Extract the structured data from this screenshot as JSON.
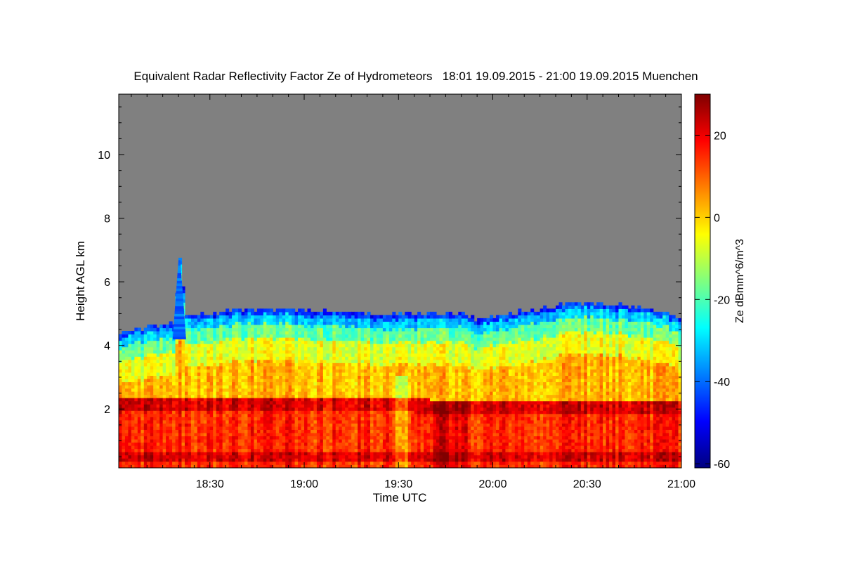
{
  "chart_data": {
    "type": "heatmap",
    "title": "Equivalent Radar Reflectivity Factor Ze of Hydrometeors   18:01 19.09.2015 - 21:00 19.09.2015 Muenchen",
    "xlabel": "Time UTC",
    "ylabel": "Height AGL km",
    "colorbar_label": "Ze dBmm^6/m^3",
    "x_tick_labels": [
      "18:30",
      "19:00",
      "19:30",
      "20:00",
      "20:30",
      "21:00"
    ],
    "x_tick_minutes": [
      30,
      60,
      90,
      120,
      150,
      180
    ],
    "xlim_minutes": [
      1,
      180
    ],
    "y_ticks": [
      2,
      4,
      6,
      8,
      10
    ],
    "ylim": [
      0.15,
      11.9
    ],
    "colorbar_ticks": [
      20,
      0,
      -20,
      -40,
      -60
    ],
    "colorbar_range": [
      -61,
      30
    ],
    "colormap": "jet",
    "background_color": "#808080",
    "echo_top_km": [
      {
        "t": 1,
        "h": 4.35
      },
      {
        "t": 10,
        "h": 4.55
      },
      {
        "t": 18,
        "h": 4.65
      },
      {
        "t": 20,
        "h": 6.65
      },
      {
        "t": 22,
        "h": 4.9
      },
      {
        "t": 30,
        "h": 4.95
      },
      {
        "t": 40,
        "h": 5.1
      },
      {
        "t": 55,
        "h": 5.05
      },
      {
        "t": 70,
        "h": 5.0
      },
      {
        "t": 85,
        "h": 4.9
      },
      {
        "t": 100,
        "h": 4.95
      },
      {
        "t": 110,
        "h": 4.95
      },
      {
        "t": 115,
        "h": 4.75
      },
      {
        "t": 125,
        "h": 4.95
      },
      {
        "t": 140,
        "h": 5.2
      },
      {
        "t": 150,
        "h": 5.3
      },
      {
        "t": 160,
        "h": 5.2
      },
      {
        "t": 170,
        "h": 5.1
      },
      {
        "t": 180,
        "h": 4.8
      }
    ],
    "bright_band_km": [
      {
        "t": 1,
        "h": 2.0
      },
      {
        "t": 90,
        "h": 2.05
      },
      {
        "t": 105,
        "h": 1.9
      },
      {
        "t": 180,
        "h": 1.95
      }
    ]
  }
}
